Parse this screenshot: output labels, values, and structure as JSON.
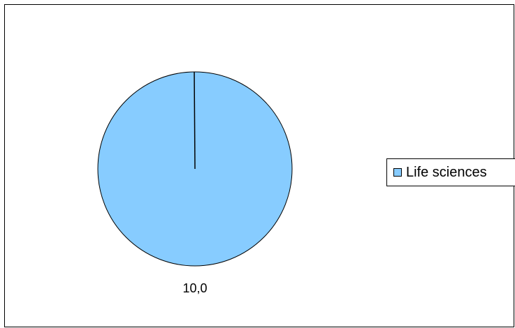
{
  "chart_data": {
    "type": "pie",
    "title": "",
    "categories": [
      "Life sciences"
    ],
    "values": [
      10.0
    ],
    "data_labels": [
      "10,0"
    ],
    "colors": [
      "#87CCFF"
    ],
    "legend": {
      "position": "right",
      "entries": [
        "Life sciences"
      ]
    }
  },
  "styles": {
    "slice_stroke": "#000000",
    "background": "#ffffff"
  }
}
